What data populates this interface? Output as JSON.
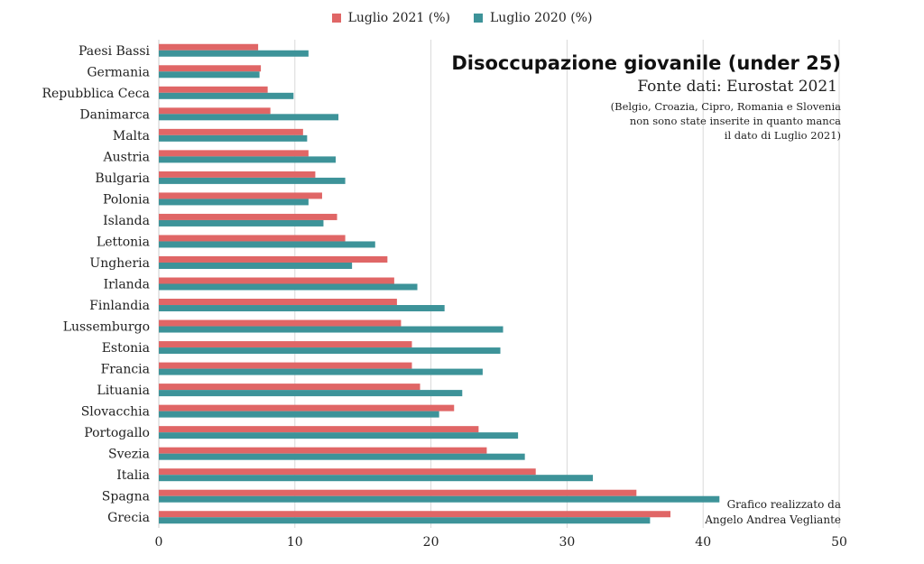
{
  "chart_data": {
    "type": "bar",
    "orientation": "horizontal",
    "title": "Disoccupazione giovanile (under 25)",
    "subtitle": "Fonte dati: Eurostat 2021",
    "note_lines": [
      "(Belgio, Croazia, Cipro,  Romania e Slovenia",
      "non sono state inserite  in quanto manca",
      "il dato  di Luglio 2021)"
    ],
    "credit_lines": [
      "Grafico realizzato da",
      "Angelo Andrea Vegliante"
    ],
    "categories": [
      "Paesi Bassi",
      "Germania",
      "Repubblica Ceca",
      "Danimarca",
      "Malta",
      "Austria",
      "Bulgaria",
      "Polonia",
      "Islanda",
      "Lettonia",
      "Ungheria",
      "Irlanda",
      "Finlandia",
      "Lussemburgo",
      "Estonia",
      "Francia",
      "Lituania",
      "Slovacchia",
      "Portogallo",
      "Svezia",
      "Italia",
      "Spagna",
      "Grecia"
    ],
    "series": [
      {
        "name": "Luglio 2021 (%)",
        "color": "#e06666",
        "values": [
          7.3,
          7.5,
          8.0,
          8.2,
          10.6,
          11.0,
          11.5,
          12.0,
          13.1,
          13.7,
          16.8,
          17.3,
          17.5,
          17.8,
          18.6,
          18.6,
          19.2,
          21.7,
          23.5,
          24.1,
          27.7,
          35.1,
          37.6
        ]
      },
      {
        "name": "Luglio 2020 (%)",
        "color": "#3d9399",
        "values": [
          11.0,
          7.4,
          9.9,
          13.2,
          10.9,
          13.0,
          13.7,
          11.0,
          12.1,
          15.9,
          14.2,
          19.0,
          21.0,
          25.3,
          25.1,
          23.8,
          22.3,
          20.6,
          26.4,
          26.9,
          31.9,
          41.2,
          36.1
        ]
      }
    ],
    "x_ticks": [
      "0",
      "10",
      "20",
      "30",
      "40",
      "50"
    ],
    "xlim": [
      0,
      50
    ],
    "grid": true,
    "legend_position": "top-center"
  }
}
